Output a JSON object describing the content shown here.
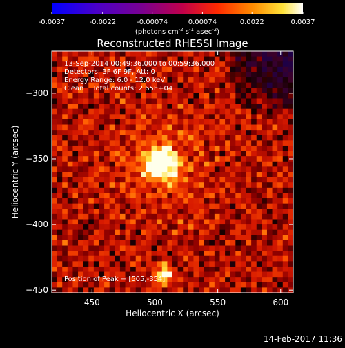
{
  "colorbar": {
    "tick_labels": [
      "-0.0037",
      "-0.0022",
      "-0.00074",
      "0.00074",
      "0.0022",
      "0.0037"
    ],
    "tick_values": [
      -0.0037,
      -0.0022,
      -0.00074,
      0.00074,
      0.0022,
      0.0037
    ],
    "range": [
      -0.0037,
      0.0037
    ],
    "colormap": "blue-purple-red-yellow-white",
    "unit_main": "(photons cm",
    "unit_sup1": "-2",
    "unit_mid": " s",
    "unit_sup2": "-1",
    "unit_mid2": " asec",
    "unit_sup3": "-2",
    "unit_end": ")"
  },
  "chart_data": {
    "type": "heatmap",
    "title": "Reconstructed RHESSI Image",
    "xlabel": "Heliocentric X (arcsec)",
    "ylabel": "Heliocentric Y (arcsec)",
    "xlim": [
      418,
      610
    ],
    "ylim": [
      -452,
      -268
    ],
    "x_ticks": [
      450,
      500,
      550,
      600
    ],
    "y_ticks": [
      -300,
      -350,
      -400,
      -450
    ],
    "x_tick_labels": [
      "450",
      "500",
      "550",
      "600"
    ],
    "y_tick_labels": [
      "−300",
      "−350",
      "−400",
      "−450"
    ],
    "peak": {
      "x": 505,
      "y": -354
    },
    "secondary_source": {
      "x": 507,
      "y": -438
    }
  },
  "annotations": {
    "time_range": "13-Sep-2014 00:49:36.000 to 00:59:36.000",
    "detectors": "Detectors: 3F 6F 9F, Att: 0",
    "energy": "Energy Range: 6.0 - 12.0 keV",
    "clean": "Clean    Total counts: 2.65E+04",
    "peak_position": "Position of Peak = [505,-354]"
  },
  "footer": {
    "timestamp": "14-Feb-2017 11:36"
  },
  "colors": {
    "background": "#000000",
    "foreground": "#ffffff"
  }
}
